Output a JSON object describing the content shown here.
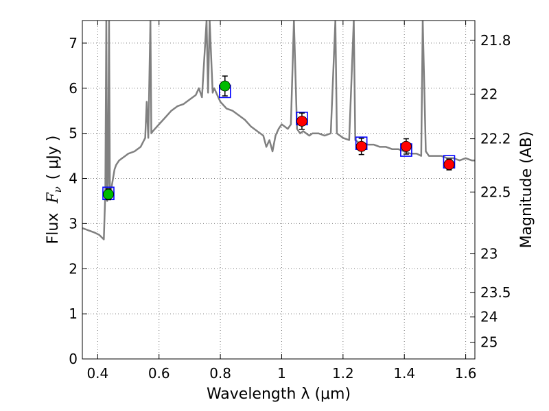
{
  "chart_data": {
    "type": "scatter",
    "title": "",
    "xlabel": "Wavelength  λ (μm)",
    "ylabel": "Flux  F_ν  ( μJy )",
    "ylabel_parts": {
      "prefix": "Flux",
      "symbol": "F",
      "subscript": "ν",
      "unit": "( μJy )"
    },
    "y2label": "Magnitude (AB)",
    "xlim": [
      0.35,
      1.63
    ],
    "ylim": [
      0,
      7.5
    ],
    "grid": true,
    "x_ticks": [
      0.4,
      0.6,
      0.8,
      1.0,
      1.2,
      1.4,
      1.6
    ],
    "x_tick_labels": [
      "0.4",
      "0.6",
      "0.8",
      "1",
      "1.2",
      "1.4",
      "1.6"
    ],
    "y_ticks": [
      0,
      1,
      2,
      3,
      4,
      5,
      6,
      7
    ],
    "y_tick_labels": [
      "0",
      "1",
      "2",
      "3",
      "4",
      "5",
      "6",
      "7"
    ],
    "y2_ticks": [
      {
        "label": "21.8",
        "flux": 7.06
      },
      {
        "label": "22",
        "flux": 5.87
      },
      {
        "label": "22.2",
        "flux": 4.88
      },
      {
        "label": "22.5",
        "flux": 3.7
      },
      {
        "label": "23",
        "flux": 2.33
      },
      {
        "label": "23.5",
        "flux": 1.47
      },
      {
        "label": "24",
        "flux": 0.93
      },
      {
        "label": "25",
        "flux": 0.37
      }
    ],
    "colors": {
      "spectrum": "#808080",
      "model_box": "#0000ff",
      "obs_green": "#00bb00",
      "obs_red": "#ff0000",
      "error_bar": "#000000",
      "grid": "#777777"
    },
    "spectrum": {
      "x": [
        0.35,
        0.37,
        0.39,
        0.405,
        0.42,
        0.425,
        0.428,
        0.431,
        0.434,
        0.437,
        0.44,
        0.445,
        0.45,
        0.455,
        0.46,
        0.47,
        0.48,
        0.49,
        0.5,
        0.52,
        0.54,
        0.555,
        0.56,
        0.565,
        0.572,
        0.575,
        0.58,
        0.6,
        0.62,
        0.64,
        0.66,
        0.68,
        0.7,
        0.72,
        0.73,
        0.74,
        0.755,
        0.76,
        0.765,
        0.775,
        0.78,
        0.79,
        0.8,
        0.82,
        0.84,
        0.86,
        0.88,
        0.9,
        0.92,
        0.94,
        0.95,
        0.96,
        0.97,
        0.98,
        0.99,
        1.0,
        1.01,
        1.02,
        1.03,
        1.04,
        1.05,
        1.06,
        1.07,
        1.08,
        1.09,
        1.1,
        1.12,
        1.14,
        1.16,
        1.175,
        1.18,
        1.19,
        1.2,
        1.22,
        1.235,
        1.24,
        1.25,
        1.26,
        1.28,
        1.3,
        1.32,
        1.34,
        1.36,
        1.38,
        1.4,
        1.42,
        1.44,
        1.455,
        1.46,
        1.47,
        1.48,
        1.5,
        1.52,
        1.54,
        1.56,
        1.58,
        1.6,
        1.62,
        1.63
      ],
      "y": [
        2.9,
        2.85,
        2.8,
        2.75,
        2.65,
        3.7,
        7.5,
        3.5,
        3.9,
        7.5,
        3.6,
        3.8,
        4.0,
        4.2,
        4.3,
        4.4,
        4.45,
        4.5,
        4.55,
        4.6,
        4.7,
        4.9,
        5.7,
        4.9,
        7.5,
        5.0,
        5.05,
        5.2,
        5.35,
        5.5,
        5.6,
        5.65,
        5.75,
        5.85,
        6.0,
        5.8,
        7.5,
        5.9,
        7.5,
        5.9,
        6.0,
        5.85,
        5.7,
        5.55,
        5.5,
        5.4,
        5.3,
        5.15,
        5.05,
        4.95,
        4.7,
        4.85,
        4.6,
        4.95,
        5.1,
        5.2,
        5.15,
        5.1,
        5.2,
        7.5,
        5.1,
        5.0,
        5.05,
        5.0,
        4.95,
        5.0,
        5.0,
        4.95,
        5.0,
        7.5,
        5.0,
        4.95,
        4.9,
        4.85,
        7.5,
        4.85,
        4.8,
        4.8,
        4.75,
        4.75,
        4.7,
        4.7,
        4.65,
        4.65,
        4.6,
        4.55,
        4.55,
        4.5,
        7.5,
        4.6,
        4.5,
        4.5,
        4.5,
        4.45,
        4.45,
        4.4,
        4.45,
        4.4,
        4.4
      ]
    },
    "model_points": {
      "x": [
        0.435,
        0.815,
        1.066,
        1.26,
        1.406,
        1.546
      ],
      "y": [
        3.67,
        5.93,
        5.33,
        4.78,
        4.63,
        4.37
      ]
    },
    "observed_points": [
      {
        "x": 0.435,
        "y": 3.65,
        "err": 0.12,
        "color": "green"
      },
      {
        "x": 0.815,
        "y": 6.05,
        "err": 0.22,
        "color": "green"
      },
      {
        "x": 1.066,
        "y": 5.27,
        "err": 0.18,
        "color": "red"
      },
      {
        "x": 1.26,
        "y": 4.71,
        "err": 0.18,
        "color": "red"
      },
      {
        "x": 1.406,
        "y": 4.71,
        "err": 0.17,
        "color": "red"
      },
      {
        "x": 1.546,
        "y": 4.31,
        "err": 0.12,
        "color": "red"
      }
    ]
  }
}
